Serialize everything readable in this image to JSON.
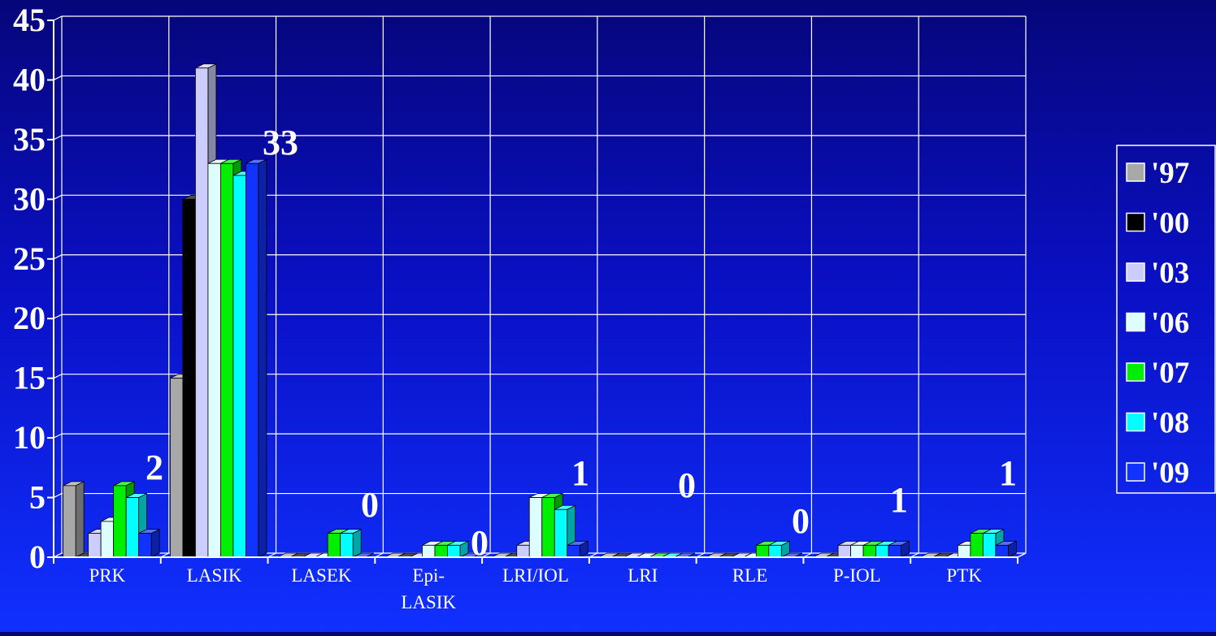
{
  "chart_data": {
    "type": "bar",
    "title": "",
    "xlabel": "",
    "ylabel": "",
    "ylim": [
      0,
      45
    ],
    "yticks": [
      "0",
      "5",
      "10",
      "15",
      "20",
      "25",
      "30",
      "35",
      "40",
      "45"
    ],
    "grid": true,
    "legend_position": "right",
    "categories": [
      "PRK",
      "LASIK",
      "LASEK",
      "Epi-LASIK",
      "LRI/IOL",
      "LRI",
      "RLE",
      "P-IOL",
      "PTK"
    ],
    "category_labels": [
      [
        "PRK"
      ],
      [
        "LASIK"
      ],
      [
        "LASEK"
      ],
      [
        "Epi-",
        "LASIK"
      ],
      [
        "LRI/IOL"
      ],
      [
        "LRI"
      ],
      [
        "RLE"
      ],
      [
        "P-IOL"
      ],
      [
        "PTK"
      ]
    ],
    "series": [
      {
        "name": "'97",
        "color": "#a8a8a8",
        "values": [
          6,
          15,
          0,
          0,
          0,
          0,
          0,
          0,
          0
        ]
      },
      {
        "name": "'00",
        "color": "#000000",
        "values": [
          0,
          30,
          0,
          0,
          0,
          0,
          0,
          0,
          0
        ]
      },
      {
        "name": "'03",
        "color": "#ccccff",
        "values": [
          2,
          41,
          0,
          0,
          1,
          0,
          0,
          1,
          0
        ]
      },
      {
        "name": "'06",
        "color": "#ddfdff",
        "values": [
          3,
          33,
          0,
          1,
          5,
          0,
          0,
          1,
          1
        ]
      },
      {
        "name": "'07",
        "color": "#00ee00",
        "values": [
          6,
          33,
          2,
          1,
          5,
          0,
          1,
          1,
          2
        ]
      },
      {
        "name": "'08",
        "color": "#00ffff",
        "values": [
          5,
          32,
          2,
          1,
          4,
          0,
          1,
          1,
          2
        ]
      },
      {
        "name": "'09",
        "color": "#1133ff",
        "values": [
          2,
          33,
          0,
          0,
          1,
          0,
          0,
          1,
          1
        ]
      }
    ],
    "data_labels": [
      "2",
      "33",
      "0",
      "0",
      "1",
      "0",
      "0",
      "1",
      "1"
    ]
  }
}
